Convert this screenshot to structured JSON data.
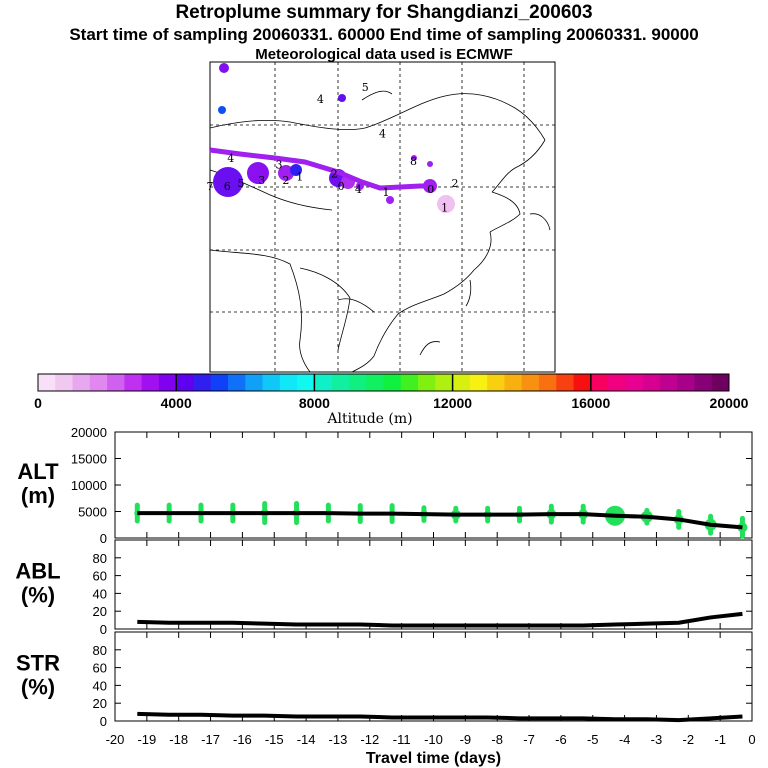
{
  "header": {
    "title": "Retroplume summary for Shangdianzi_200603",
    "subtitle": "Start time of sampling 20060331. 60000     End time of sampling 20060331. 90000",
    "met_line": "Meteorological data used is ECMWF"
  },
  "colors": {
    "plume_track": "#a020f0",
    "trajectory": "#000000",
    "alt_points": "#22e05a",
    "colorbar": [
      "#f8e0f8",
      "#f0c8f0",
      "#e8a8f0",
      "#e088f0",
      "#d060f0",
      "#c030f0",
      "#a010f0",
      "#8000f0",
      "#6000f0",
      "#3020f0",
      "#1040f8",
      "#1070f8",
      "#10a0f8",
      "#10c8f8",
      "#10e8f8",
      "#10f8f0",
      "#10f0c8",
      "#10f0a0",
      "#10f080",
      "#10f060",
      "#10f040",
      "#40f020",
      "#80f010",
      "#b0f010",
      "#d8f010",
      "#f8f010",
      "#f8d010",
      "#f8b010",
      "#f89010",
      "#f87010",
      "#f84010",
      "#f81010",
      "#f80060",
      "#f00080",
      "#e80090",
      "#d80090",
      "#c00090",
      "#a80088",
      "#880078",
      "#700060"
    ]
  },
  "map": {
    "labels": [
      {
        "text": "4",
        "rx": 0.32,
        "ry": 0.12
      },
      {
        "text": "5",
        "rx": 0.45,
        "ry": 0.08
      },
      {
        "text": "4",
        "rx": 0.5,
        "ry": 0.23
      },
      {
        "text": "4",
        "rx": 0.06,
        "ry": 0.31
      },
      {
        "text": "3",
        "rx": 0.2,
        "ry": 0.33
      },
      {
        "text": "2",
        "rx": 0.36,
        "ry": 0.36
      },
      {
        "text": "8",
        "rx": 0.59,
        "ry": 0.32
      },
      {
        "text": "7",
        "rx": 0.0,
        "ry": 0.4
      },
      {
        "text": "6",
        "rx": 0.05,
        "ry": 0.4
      },
      {
        "text": "5",
        "rx": 0.09,
        "ry": 0.39
      },
      {
        "text": "3",
        "rx": 0.15,
        "ry": 0.38
      },
      {
        "text": "2",
        "rx": 0.22,
        "ry": 0.38
      },
      {
        "text": "1",
        "rx": 0.26,
        "ry": 0.37
      },
      {
        "text": "0",
        "rx": 0.38,
        "ry": 0.4
      },
      {
        "text": "4",
        "rx": 0.43,
        "ry": 0.41
      },
      {
        "text": "1",
        "rx": 0.51,
        "ry": 0.42
      },
      {
        "text": "0",
        "rx": 0.64,
        "ry": 0.41
      },
      {
        "text": "2",
        "rx": 0.71,
        "ry": 0.39
      },
      {
        "text": "1",
        "rx": 0.68,
        "ry": 0.47
      }
    ]
  },
  "chart_data": [
    {
      "type": "heatmap",
      "title": "Altitude (m)",
      "xlabel": "Altitude (m)",
      "range": [
        0,
        20000
      ],
      "tick_labels": [
        "0",
        "4000",
        "8000",
        "12000",
        "16000",
        "20000"
      ]
    },
    {
      "type": "line",
      "title": "ALT (m)",
      "ylabel": "ALT\n(m)",
      "ylim": [
        0,
        20000
      ],
      "yticks": [
        0,
        5000,
        10000,
        15000,
        20000
      ],
      "x": [
        -19.3,
        -18.3,
        -17.3,
        -16.3,
        -15.3,
        -14.3,
        -13.3,
        -12.3,
        -11.3,
        -10.3,
        -9.3,
        -8.3,
        -7.3,
        -6.3,
        -5.3,
        -4.3,
        -3.3,
        -2.3,
        -1.3,
        -0.3
      ],
      "values": [
        4700,
        4700,
        4700,
        4700,
        4700,
        4700,
        4700,
        4600,
        4600,
        4500,
        4400,
        4400,
        4400,
        4500,
        4500,
        4200,
        4000,
        3500,
        2500,
        2000
      ],
      "spread": [
        1500,
        1500,
        1500,
        1500,
        1800,
        1800,
        1500,
        1500,
        1500,
        1200,
        1200,
        1200,
        1200,
        1500,
        1500,
        1000,
        1200,
        1500,
        1600,
        1700
      ],
      "marker_size": [
        3,
        3,
        3,
        3,
        4,
        4,
        3,
        3,
        3,
        4,
        5,
        4,
        4,
        5,
        5,
        10,
        6,
        5,
        6,
        5
      ]
    },
    {
      "type": "line",
      "title": "ABL (%)",
      "ylabel": "ABL\n(%)",
      "ylim": [
        0,
        100
      ],
      "yticks": [
        0,
        20,
        40,
        60,
        80
      ],
      "x": [
        -19.3,
        -18.3,
        -17.3,
        -16.3,
        -15.3,
        -14.3,
        -13.3,
        -12.3,
        -11.3,
        -10.3,
        -9.3,
        -8.3,
        -7.3,
        -6.3,
        -5.3,
        -4.3,
        -3.3,
        -2.3,
        -1.3,
        -0.3
      ],
      "values": [
        8,
        7,
        7,
        7,
        6,
        5,
        5,
        5,
        4,
        4,
        4,
        4,
        4,
        4,
        4,
        5,
        6,
        7,
        13,
        17
      ]
    },
    {
      "type": "line",
      "title": "STR (%)",
      "ylabel": "STR\n(%)",
      "ylim": [
        0,
        100
      ],
      "yticks": [
        0,
        20,
        40,
        60,
        80
      ],
      "xlabel": "Travel time (days)",
      "xlim": [
        -20,
        0
      ],
      "xticks": [
        "-20",
        "-19",
        "-18",
        "-17",
        "-16",
        "-15",
        "-14",
        "-13",
        "-12",
        "-11",
        "-10",
        "-9",
        "-8",
        "-7",
        "-6",
        "-5",
        "-4",
        "-3",
        "-2",
        "-1",
        "0"
      ],
      "x": [
        -19.3,
        -18.3,
        -17.3,
        -16.3,
        -15.3,
        -14.3,
        -13.3,
        -12.3,
        -11.3,
        -10.3,
        -9.3,
        -8.3,
        -7.3,
        -6.3,
        -5.3,
        -4.3,
        -3.3,
        -2.3,
        -1.3,
        -0.3
      ],
      "values": [
        8,
        7,
        7,
        6,
        6,
        5,
        5,
        5,
        4,
        4,
        4,
        4,
        3,
        3,
        3,
        2,
        2,
        1,
        3,
        5
      ]
    }
  ]
}
